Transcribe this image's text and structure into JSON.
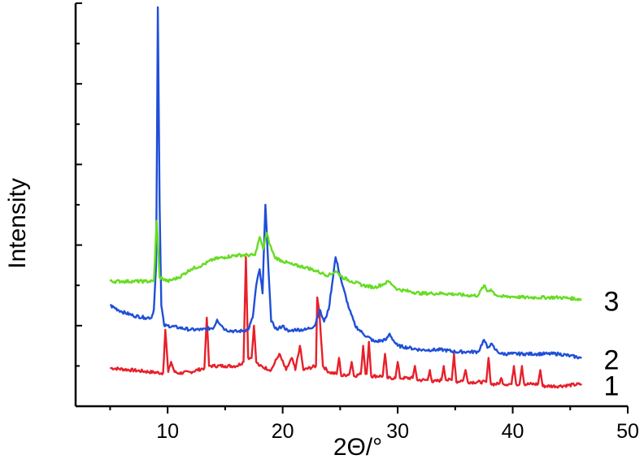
{
  "chart_data": {
    "type": "line",
    "title": "",
    "xlabel": "2Θ/°",
    "ylabel": "Intensity",
    "xlim": [
      2,
      50
    ],
    "ylim": [
      0,
      1
    ],
    "grid": false,
    "x_ticks": [
      10,
      20,
      30,
      40,
      50
    ],
    "x_minor_ticks": [
      5,
      15,
      25,
      35,
      45
    ],
    "y_ticks": [
      0.2,
      0.4,
      0.6,
      0.8,
      1.0
    ],
    "y_tick_labels_shown": false,
    "series": [
      {
        "name": "1",
        "color": "#e8202a",
        "baseline": 0.09,
        "points": [
          [
            5,
            0.095
          ],
          [
            9.6,
            0.082
          ],
          [
            9.8,
            0.19
          ],
          [
            10.05,
            0.085
          ],
          [
            10.3,
            0.11
          ],
          [
            10.6,
            0.085
          ],
          [
            11,
            0.082
          ],
          [
            12,
            0.085
          ],
          [
            13.2,
            0.095
          ],
          [
            13.4,
            0.22
          ],
          [
            13.6,
            0.1
          ],
          [
            14,
            0.1
          ],
          [
            15,
            0.1
          ],
          [
            16,
            0.1
          ],
          [
            16.6,
            0.11
          ],
          [
            16.8,
            0.37
          ],
          [
            17,
            0.12
          ],
          [
            17.3,
            0.12
          ],
          [
            17.5,
            0.2
          ],
          [
            17.7,
            0.11
          ],
          [
            18,
            0.1
          ],
          [
            19,
            0.09
          ],
          [
            19.7,
            0.13
          ],
          [
            20.3,
            0.09
          ],
          [
            20.8,
            0.12
          ],
          [
            21.1,
            0.09
          ],
          [
            21.5,
            0.15
          ],
          [
            21.8,
            0.09
          ],
          [
            22.9,
            0.1
          ],
          [
            23,
            0.27
          ],
          [
            23.2,
            0.23
          ],
          [
            23.5,
            0.1
          ],
          [
            24,
            0.085
          ],
          [
            24.7,
            0.08
          ],
          [
            24.9,
            0.12
          ],
          [
            25.1,
            0.075
          ],
          [
            25.8,
            0.08
          ],
          [
            26,
            0.11
          ],
          [
            26.2,
            0.075
          ],
          [
            26.8,
            0.08
          ],
          [
            27,
            0.15
          ],
          [
            27.2,
            0.08
          ],
          [
            27.3,
            0.08
          ],
          [
            27.5,
            0.16
          ],
          [
            27.7,
            0.075
          ],
          [
            28.7,
            0.075
          ],
          [
            28.9,
            0.13
          ],
          [
            29.1,
            0.07
          ],
          [
            29.8,
            0.07
          ],
          [
            30,
            0.11
          ],
          [
            30.2,
            0.07
          ],
          [
            31.3,
            0.07
          ],
          [
            31.5,
            0.1
          ],
          [
            31.7,
            0.065
          ],
          [
            32.6,
            0.065
          ],
          [
            32.8,
            0.09
          ],
          [
            33,
            0.06
          ],
          [
            33.8,
            0.065
          ],
          [
            34,
            0.1
          ],
          [
            34.2,
            0.065
          ],
          [
            34.7,
            0.065
          ],
          [
            34.9,
            0.13
          ],
          [
            35.1,
            0.06
          ],
          [
            35.7,
            0.065
          ],
          [
            35.9,
            0.09
          ],
          [
            36.1,
            0.06
          ],
          [
            37.7,
            0.06
          ],
          [
            37.9,
            0.12
          ],
          [
            38.1,
            0.055
          ],
          [
            38.8,
            0.055
          ],
          [
            39,
            0.07
          ],
          [
            39.2,
            0.055
          ],
          [
            39.9,
            0.055
          ],
          [
            40.1,
            0.1
          ],
          [
            40.3,
            0.055
          ],
          [
            40.6,
            0.055
          ],
          [
            40.8,
            0.1
          ],
          [
            41,
            0.055
          ],
          [
            42.2,
            0.055
          ],
          [
            42.4,
            0.09
          ],
          [
            42.6,
            0.05
          ],
          [
            44,
            0.05
          ],
          [
            46,
            0.055
          ]
        ]
      },
      {
        "name": "2",
        "color": "#1f4fd8",
        "baseline": 0.25,
        "points": [
          [
            5,
            0.25
          ],
          [
            6,
            0.235
          ],
          [
            7,
            0.225
          ],
          [
            8,
            0.22
          ],
          [
            8.6,
            0.22
          ],
          [
            8.8,
            0.24
          ],
          [
            9,
            0.35
          ],
          [
            9.15,
            0.99
          ],
          [
            9.3,
            0.5
          ],
          [
            9.45,
            0.25
          ],
          [
            9.7,
            0.2
          ],
          [
            10,
            0.2
          ],
          [
            11,
            0.195
          ],
          [
            12,
            0.19
          ],
          [
            13,
            0.19
          ],
          [
            14,
            0.195
          ],
          [
            14.3,
            0.215
          ],
          [
            14.7,
            0.2
          ],
          [
            15,
            0.19
          ],
          [
            16,
            0.185
          ],
          [
            17,
            0.19
          ],
          [
            17.4,
            0.22
          ],
          [
            17.7,
            0.3
          ],
          [
            18,
            0.34
          ],
          [
            18.25,
            0.28
          ],
          [
            18.5,
            0.5
          ],
          [
            18.7,
            0.38
          ],
          [
            19,
            0.21
          ],
          [
            19.5,
            0.19
          ],
          [
            20,
            0.2
          ],
          [
            20.5,
            0.185
          ],
          [
            21,
            0.19
          ],
          [
            22,
            0.19
          ],
          [
            22.8,
            0.2
          ],
          [
            23.2,
            0.24
          ],
          [
            23.6,
            0.21
          ],
          [
            24,
            0.24
          ],
          [
            24.6,
            0.37
          ],
          [
            25.2,
            0.3
          ],
          [
            25.8,
            0.24
          ],
          [
            26.3,
            0.2
          ],
          [
            27,
            0.18
          ],
          [
            28,
            0.16
          ],
          [
            29,
            0.165
          ],
          [
            29.3,
            0.18
          ],
          [
            29.7,
            0.16
          ],
          [
            30,
            0.15
          ],
          [
            31,
            0.145
          ],
          [
            32,
            0.14
          ],
          [
            33,
            0.14
          ],
          [
            34,
            0.14
          ],
          [
            35,
            0.135
          ],
          [
            36,
            0.135
          ],
          [
            37,
            0.135
          ],
          [
            37.5,
            0.165
          ],
          [
            37.8,
            0.145
          ],
          [
            38.1,
            0.155
          ],
          [
            38.5,
            0.14
          ],
          [
            39,
            0.13
          ],
          [
            40,
            0.13
          ],
          [
            41,
            0.13
          ],
          [
            42,
            0.13
          ],
          [
            43,
            0.13
          ],
          [
            44,
            0.13
          ],
          [
            45,
            0.125
          ],
          [
            46,
            0.12
          ]
        ]
      },
      {
        "name": "3",
        "color": "#66dd22",
        "baseline": 0.31,
        "points": [
          [
            5,
            0.31
          ],
          [
            6,
            0.31
          ],
          [
            7,
            0.31
          ],
          [
            8,
            0.31
          ],
          [
            8.8,
            0.31
          ],
          [
            9.05,
            0.46
          ],
          [
            9.3,
            0.32
          ],
          [
            10,
            0.31
          ],
          [
            11,
            0.32
          ],
          [
            12,
            0.34
          ],
          [
            13,
            0.35
          ],
          [
            14,
            0.365
          ],
          [
            15,
            0.37
          ],
          [
            16,
            0.375
          ],
          [
            17,
            0.375
          ],
          [
            17.6,
            0.375
          ],
          [
            18,
            0.42
          ],
          [
            18.3,
            0.39
          ],
          [
            18.6,
            0.43
          ],
          [
            18.9,
            0.4
          ],
          [
            19.3,
            0.37
          ],
          [
            20,
            0.36
          ],
          [
            21,
            0.35
          ],
          [
            22,
            0.345
          ],
          [
            23,
            0.335
          ],
          [
            23.4,
            0.33
          ],
          [
            24,
            0.325
          ],
          [
            24.6,
            0.335
          ],
          [
            25.2,
            0.32
          ],
          [
            26,
            0.31
          ],
          [
            27,
            0.3
          ],
          [
            28,
            0.295
          ],
          [
            28.9,
            0.305
          ],
          [
            29.2,
            0.31
          ],
          [
            29.6,
            0.3
          ],
          [
            30,
            0.29
          ],
          [
            31,
            0.285
          ],
          [
            32,
            0.28
          ],
          [
            33,
            0.28
          ],
          [
            34,
            0.28
          ],
          [
            35,
            0.278
          ],
          [
            36,
            0.275
          ],
          [
            37,
            0.275
          ],
          [
            37.5,
            0.3
          ],
          [
            37.8,
            0.285
          ],
          [
            38.1,
            0.29
          ],
          [
            38.5,
            0.277
          ],
          [
            39,
            0.272
          ],
          [
            40,
            0.272
          ],
          [
            41,
            0.27
          ],
          [
            42,
            0.27
          ],
          [
            43,
            0.27
          ],
          [
            44,
            0.27
          ],
          [
            45,
            0.268
          ],
          [
            46,
            0.265
          ]
        ]
      }
    ]
  }
}
